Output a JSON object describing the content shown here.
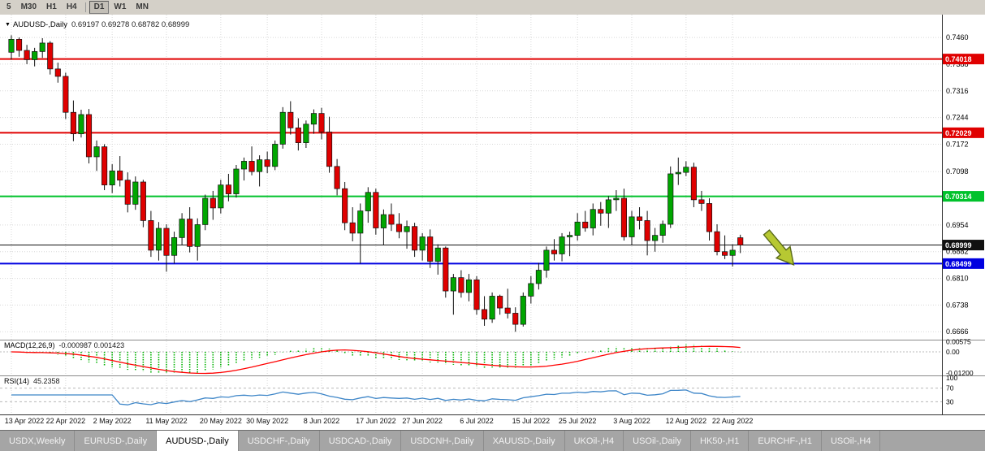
{
  "toolbar": {
    "timeframes": [
      {
        "label": "5",
        "active": false
      },
      {
        "label": "M30",
        "active": false
      },
      {
        "label": "H1",
        "active": false
      },
      {
        "label": "H4",
        "active": false
      },
      {
        "label": "D1",
        "active": true
      },
      {
        "label": "W1",
        "active": false
      },
      {
        "label": "MN",
        "active": false
      }
    ]
  },
  "chart": {
    "header": {
      "title": "AUDUSD-,Daily",
      "ohlc": "0.69197 0.69278 0.68782 0.68999"
    }
  },
  "chart_data": {
    "type": "candlestick",
    "symbol": "AUDUSD-",
    "timeframe": "Daily",
    "current": {
      "open": 0.69197,
      "high": 0.69278,
      "low": 0.68782,
      "close": 0.68999
    },
    "ylim": [
      0.6649,
      0.7515
    ],
    "price_axis_labels": [
      "0.7460",
      "0.7388",
      "0.7316",
      "0.7244",
      "0.7172",
      "0.7098",
      "0.6954",
      "0.6882",
      "0.6810",
      "0.6738",
      "0.6666"
    ],
    "hlines": [
      {
        "price": 0.74018,
        "label": "0.74018",
        "color": "#E00000",
        "width": 2
      },
      {
        "price": 0.72029,
        "label": "0.72029",
        "color": "#E00000",
        "width": 2
      },
      {
        "price": 0.70314,
        "label": "0.70314",
        "color": "#00C22B",
        "width": 2
      },
      {
        "price": 0.68999,
        "label": "0.68999",
        "color": "#111111",
        "width": 1
      },
      {
        "price": 0.68499,
        "label": "0.68499",
        "color": "#0000E0",
        "width": 2
      }
    ],
    "date_labels": [
      {
        "text": "13 Apr 2022",
        "bar": 0
      },
      {
        "text": "22 Apr 2022",
        "bar": 7
      },
      {
        "text": "2 May 2022",
        "bar": 13
      },
      {
        "text": "11 May 2022",
        "bar": 20
      },
      {
        "text": "20 May 2022",
        "bar": 27
      },
      {
        "text": "30 May 2022",
        "bar": 33
      },
      {
        "text": "8 Jun 2022",
        "bar": 40
      },
      {
        "text": "17 Jun 2022",
        "bar": 47
      },
      {
        "text": "27 Jun 2022",
        "bar": 53
      },
      {
        "text": "6 Jul 2022",
        "bar": 60
      },
      {
        "text": "15 Jul 2022",
        "bar": 67
      },
      {
        "text": "25 Jul 2022",
        "bar": 73
      },
      {
        "text": "3 Aug 2022",
        "bar": 80
      },
      {
        "text": "12 Aug 2022",
        "bar": 87
      },
      {
        "text": "22 Aug 2022",
        "bar": 93
      }
    ],
    "candles": [
      [
        0.742,
        0.7466,
        0.74,
        0.7455
      ],
      [
        0.7455,
        0.746,
        0.7408,
        0.7425
      ],
      [
        0.7425,
        0.744,
        0.7388,
        0.74
      ],
      [
        0.74,
        0.7432,
        0.7382,
        0.7422
      ],
      [
        0.7422,
        0.7458,
        0.7405,
        0.7445
      ],
      [
        0.7445,
        0.745,
        0.736,
        0.7375
      ],
      [
        0.7375,
        0.7392,
        0.7338,
        0.7355
      ],
      [
        0.7355,
        0.7365,
        0.724,
        0.7258
      ],
      [
        0.7258,
        0.729,
        0.718,
        0.72
      ],
      [
        0.72,
        0.7265,
        0.719,
        0.7252
      ],
      [
        0.7252,
        0.7267,
        0.712,
        0.7138
      ],
      [
        0.7138,
        0.7182,
        0.71,
        0.7165
      ],
      [
        0.7165,
        0.7172,
        0.7048,
        0.7062
      ],
      [
        0.7062,
        0.7118,
        0.704,
        0.71
      ],
      [
        0.71,
        0.714,
        0.7058,
        0.7075
      ],
      [
        0.7075,
        0.7096,
        0.6988,
        0.701
      ],
      [
        0.701,
        0.7085,
        0.6995,
        0.707
      ],
      [
        0.707,
        0.7076,
        0.6948,
        0.6966
      ],
      [
        0.6966,
        0.6992,
        0.6868,
        0.6886
      ],
      [
        0.6886,
        0.6962,
        0.6858,
        0.6945
      ],
      [
        0.6945,
        0.6956,
        0.6828,
        0.6872
      ],
      [
        0.6872,
        0.6936,
        0.685,
        0.692
      ],
      [
        0.692,
        0.6986,
        0.69,
        0.697
      ],
      [
        0.697,
        0.7002,
        0.688,
        0.6896
      ],
      [
        0.6896,
        0.6972,
        0.6858,
        0.6955
      ],
      [
        0.6955,
        0.7036,
        0.694,
        0.7026
      ],
      [
        0.7026,
        0.7046,
        0.6968,
        0.7
      ],
      [
        0.7,
        0.7076,
        0.6985,
        0.7062
      ],
      [
        0.7062,
        0.7092,
        0.7018,
        0.7038
      ],
      [
        0.7038,
        0.7116,
        0.7028,
        0.7105
      ],
      [
        0.7105,
        0.7136,
        0.7074,
        0.7126
      ],
      [
        0.7126,
        0.7166,
        0.7088,
        0.7098
      ],
      [
        0.7098,
        0.7142,
        0.7058,
        0.713
      ],
      [
        0.713,
        0.7152,
        0.7094,
        0.7112
      ],
      [
        0.7112,
        0.7182,
        0.7102,
        0.7172
      ],
      [
        0.7172,
        0.7272,
        0.716,
        0.7258
      ],
      [
        0.7258,
        0.7288,
        0.7198,
        0.7216
      ],
      [
        0.7216,
        0.7242,
        0.7155,
        0.7176
      ],
      [
        0.7176,
        0.7236,
        0.7162,
        0.7226
      ],
      [
        0.7226,
        0.7266,
        0.72,
        0.7255
      ],
      [
        0.7255,
        0.727,
        0.7185,
        0.7205
      ],
      [
        0.7205,
        0.7246,
        0.7095,
        0.7112
      ],
      [
        0.7112,
        0.7132,
        0.7034,
        0.7052
      ],
      [
        0.7052,
        0.707,
        0.694,
        0.696
      ],
      [
        0.696,
        0.7002,
        0.691,
        0.6932
      ],
      [
        0.6932,
        0.7012,
        0.685,
        0.6992
      ],
      [
        0.6992,
        0.7056,
        0.696,
        0.7042
      ],
      [
        0.7042,
        0.7052,
        0.6928,
        0.6946
      ],
      [
        0.6946,
        0.6996,
        0.69,
        0.6982
      ],
      [
        0.6982,
        0.7012,
        0.6938,
        0.6956
      ],
      [
        0.6956,
        0.6986,
        0.6918,
        0.6936
      ],
      [
        0.6936,
        0.6966,
        0.689,
        0.695
      ],
      [
        0.695,
        0.696,
        0.6868,
        0.6886
      ],
      [
        0.6886,
        0.6932,
        0.6858,
        0.6922
      ],
      [
        0.6922,
        0.6942,
        0.6838,
        0.6856
      ],
      [
        0.6856,
        0.6902,
        0.682,
        0.6892
      ],
      [
        0.6892,
        0.6896,
        0.6758,
        0.6776
      ],
      [
        0.6776,
        0.6822,
        0.6712,
        0.6812
      ],
      [
        0.6812,
        0.6832,
        0.6758,
        0.6772
      ],
      [
        0.6772,
        0.6822,
        0.6748,
        0.6806
      ],
      [
        0.6806,
        0.6816,
        0.6712,
        0.6726
      ],
      [
        0.6726,
        0.6762,
        0.6682,
        0.67
      ],
      [
        0.67,
        0.6772,
        0.669,
        0.6762
      ],
      [
        0.6762,
        0.6766,
        0.6712,
        0.673
      ],
      [
        0.673,
        0.6782,
        0.6702,
        0.6716
      ],
      [
        0.6716,
        0.6732,
        0.6666,
        0.6686
      ],
      [
        0.6686,
        0.6772,
        0.668,
        0.6762
      ],
      [
        0.6762,
        0.6816,
        0.6742,
        0.6796
      ],
      [
        0.6796,
        0.6852,
        0.678,
        0.6832
      ],
      [
        0.6832,
        0.6896,
        0.6812,
        0.6886
      ],
      [
        0.6886,
        0.6916,
        0.6858,
        0.6876
      ],
      [
        0.6876,
        0.6932,
        0.6856,
        0.6922
      ],
      [
        0.6922,
        0.6936,
        0.687,
        0.6926
      ],
      [
        0.6926,
        0.6986,
        0.6912,
        0.6962
      ],
      [
        0.6962,
        0.6992,
        0.6936,
        0.6946
      ],
      [
        0.6946,
        0.7012,
        0.6926,
        0.6996
      ],
      [
        0.6996,
        0.7016,
        0.6952,
        0.6986
      ],
      [
        0.6986,
        0.7032,
        0.6946,
        0.7022
      ],
      [
        0.7022,
        0.7048,
        0.6992,
        0.7026
      ],
      [
        0.7026,
        0.7052,
        0.6912,
        0.6922
      ],
      [
        0.6922,
        0.6992,
        0.69,
        0.6976
      ],
      [
        0.6976,
        0.7002,
        0.6942,
        0.6966
      ],
      [
        0.6966,
        0.6992,
        0.6872,
        0.6912
      ],
      [
        0.6912,
        0.6946,
        0.6882,
        0.6926
      ],
      [
        0.6926,
        0.6966,
        0.6906,
        0.6956
      ],
      [
        0.6956,
        0.7112,
        0.6946,
        0.7092
      ],
      [
        0.7092,
        0.7136,
        0.7062,
        0.7096
      ],
      [
        0.7096,
        0.7126,
        0.7086,
        0.711
      ],
      [
        0.711,
        0.7122,
        0.7002,
        0.7022
      ],
      [
        0.7022,
        0.7046,
        0.6992,
        0.7012
      ],
      [
        0.7012,
        0.7026,
        0.6912,
        0.6936
      ],
      [
        0.6936,
        0.6956,
        0.6872,
        0.6882
      ],
      [
        0.6882,
        0.6926,
        0.6862,
        0.6872
      ],
      [
        0.6872,
        0.6902,
        0.6842,
        0.6886
      ],
      [
        0.69197,
        0.69278,
        0.68782,
        0.68999
      ]
    ],
    "indicators": {
      "macd": {
        "label": "MACD(12,26,9)",
        "values": "-0.000987 0.001423",
        "params": [
          12,
          26,
          9
        ],
        "axis": [
          {
            "text": "0.00575",
            "value": 0.00575
          },
          {
            "text": "0.00",
            "value": 0
          },
          {
            "text": "-0.01200",
            "value": -0.012
          }
        ]
      },
      "rsi": {
        "label": "RSI(14)",
        "value": "45.2358",
        "period": 14,
        "levels": [
          70,
          30
        ],
        "axis": [
          {
            "text": "100",
            "value": 100
          },
          {
            "text": "70",
            "value": 70
          },
          {
            "text": "30",
            "value": 30
          }
        ]
      }
    },
    "annotation": {
      "shape": "down-right-arrow",
      "x": 944,
      "y": 268,
      "angle": 50
    }
  },
  "tabs": [
    {
      "label": "USDX,Weekly",
      "active": false
    },
    {
      "label": "EURUSD-,Daily",
      "active": false
    },
    {
      "label": "AUDUSD-,Daily",
      "active": true
    },
    {
      "label": "USDCHF-,Daily",
      "active": false
    },
    {
      "label": "USDCAD-,Daily",
      "active": false
    },
    {
      "label": "USDCNH-,Daily",
      "active": false
    },
    {
      "label": "XAUUSD-,Daily",
      "active": false
    },
    {
      "label": "UKOil-,H4",
      "active": false
    },
    {
      "label": "USOil-,Daily",
      "active": false
    },
    {
      "label": "HK50-,H1",
      "active": false
    },
    {
      "label": "EURCHF-,H1",
      "active": false
    },
    {
      "label": "USOil-,H4",
      "active": false
    }
  ],
  "colors": {
    "candle_up": "#00A600",
    "candle_down": "#DF0000",
    "macd_histogram": "#00B200",
    "macd_signal": "#FF0000",
    "rsi_line": "#3E86C8",
    "arrow_fill": "#B7C832",
    "arrow_outline": "#5A6B1A",
    "grid": "#D8D8D8",
    "badge_text": "#FFFFFF"
  }
}
